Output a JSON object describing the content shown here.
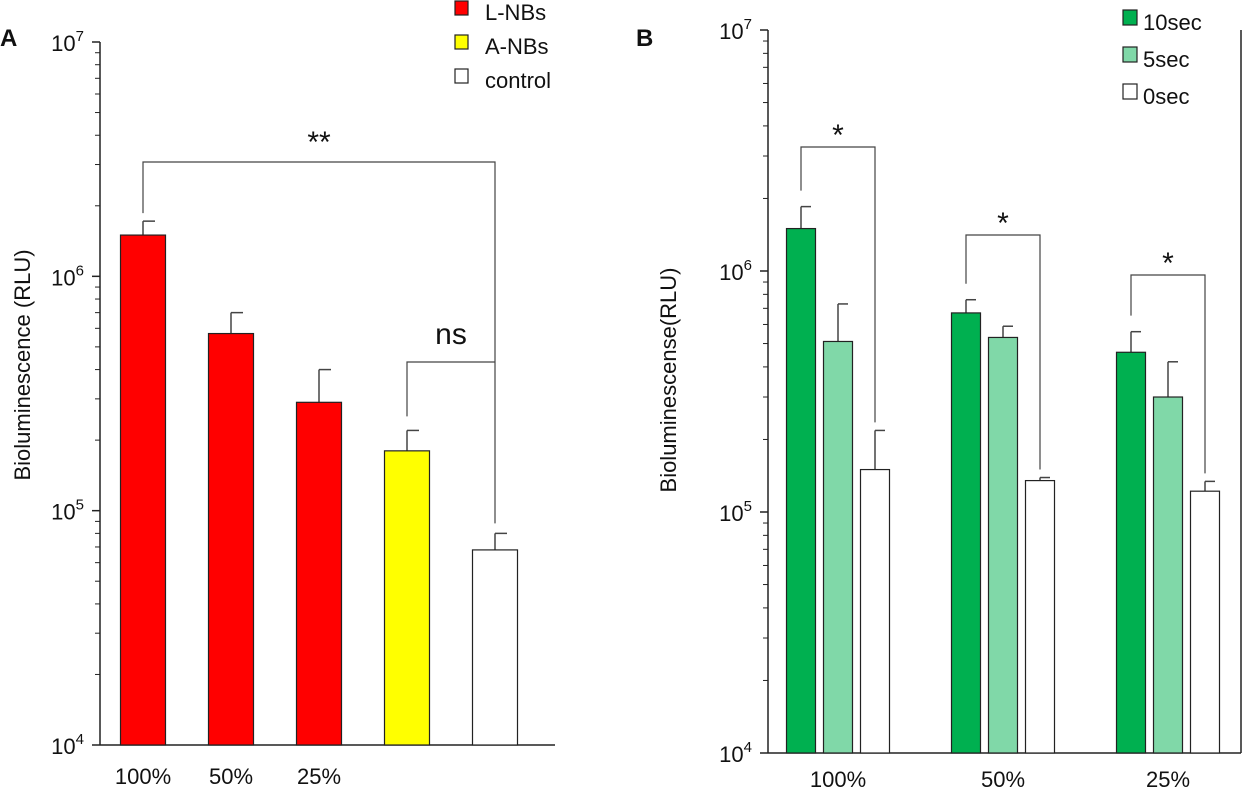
{
  "chart_data": [
    {
      "panel": "A",
      "type": "bar",
      "yscale": "log",
      "ylabel": "Bioluminescence (RLU)",
      "ylim": [
        10000,
        10000000
      ],
      "ytick_labels": [
        {
          "base": "10",
          "exp": "4"
        },
        {
          "base": "10",
          "exp": "5"
        },
        {
          "base": "10",
          "exp": "6"
        },
        {
          "base": "10",
          "exp": "7"
        }
      ],
      "categories": [
        "100%",
        "50%",
        "25%",
        "",
        ""
      ],
      "bars": [
        {
          "label": "100%",
          "group": "L-NBs",
          "value": 1500000,
          "error": 220000
        },
        {
          "label": "50%",
          "group": "L-NBs",
          "value": 570000,
          "error": 130000
        },
        {
          "label": "25%",
          "group": "L-NBs",
          "value": 290000,
          "error": 110000
        },
        {
          "label": "",
          "group": "A-NBs",
          "value": 180000,
          "error": 40000
        },
        {
          "label": "",
          "group": "control",
          "value": 68000,
          "error": 12000
        }
      ],
      "legend": [
        {
          "name": "L-NBs",
          "color": "#ff0000"
        },
        {
          "name": "A-NBs",
          "color": "#ffff00"
        },
        {
          "name": "control",
          "color": "#ffffff"
        }
      ],
      "annotations": [
        {
          "text": "**",
          "from_bar": 0,
          "to_bar": 4
        },
        {
          "text": "ns",
          "from_bar": 3,
          "to_bar": 4
        }
      ]
    },
    {
      "panel": "B",
      "type": "bar",
      "yscale": "log",
      "ylabel": "Bioluminescense(RLU)",
      "ylim": [
        10000,
        10000000
      ],
      "ytick_labels": [
        {
          "base": "10",
          "exp": "4"
        },
        {
          "base": "10",
          "exp": "5"
        },
        {
          "base": "10",
          "exp": "6"
        },
        {
          "base": "10",
          "exp": "7"
        }
      ],
      "categories": [
        "100%",
        "50%",
        "25%"
      ],
      "series": [
        {
          "name": "10sec",
          "color": "#00b050",
          "values": [
            1500000,
            670000,
            460000
          ],
          "errors": [
            350000,
            90000,
            100000
          ]
        },
        {
          "name": "5sec",
          "color": "#80d8a8",
          "values": [
            510000,
            530000,
            300000
          ],
          "errors": [
            220000,
            60000,
            120000
          ]
        },
        {
          "name": "0sec",
          "color": "#ffffff",
          "values": [
            150000,
            135000,
            122000
          ],
          "errors": [
            68000,
            4000,
            12000
          ]
        }
      ],
      "annotations": [
        {
          "text": "*",
          "category": 0
        },
        {
          "text": "*",
          "category": 1
        },
        {
          "text": "*",
          "category": 2
        }
      ]
    }
  ]
}
